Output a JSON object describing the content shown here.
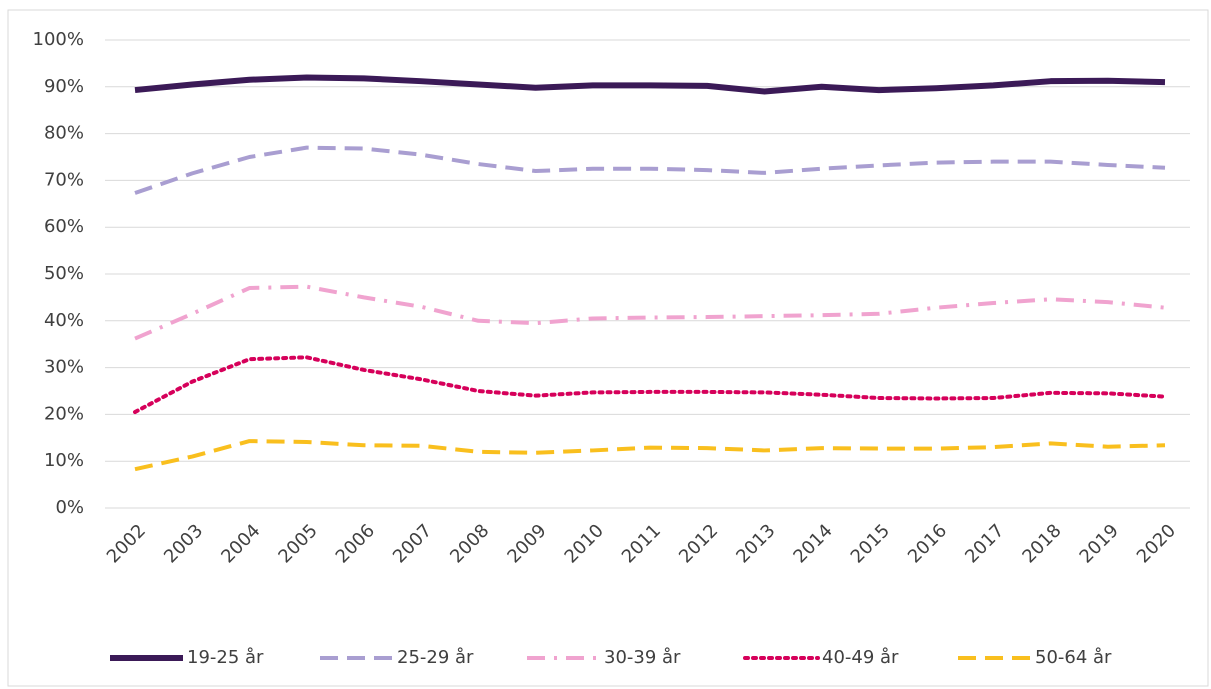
{
  "chart_data": {
    "type": "line",
    "x": [
      "2002",
      "2003",
      "2004",
      "2005",
      "2006",
      "2007",
      "2008",
      "2009",
      "2010",
      "2011",
      "2012",
      "2013",
      "2014",
      "2015",
      "2016",
      "2017",
      "2018",
      "2019",
      "2020"
    ],
    "series": [
      {
        "name": "19-25 år",
        "color": "#3b1a57",
        "dash": "solid",
        "values": [
          89.3,
          90.5,
          91.5,
          92,
          91.8,
          91.2,
          90.5,
          89.8,
          90.3,
          90.3,
          90.2,
          89,
          90,
          89.3,
          89.7,
          90.3,
          91.2,
          91.3,
          91
        ]
      },
      {
        "name": "25-29 år",
        "color": "#a99ed1",
        "dash": "dashed",
        "values": [
          67.3,
          71.5,
          75,
          77,
          76.8,
          75.5,
          73.5,
          72,
          72.5,
          72.5,
          72.2,
          71.6,
          72.5,
          73.2,
          73.8,
          74,
          74,
          73.3,
          72.7
        ]
      },
      {
        "name": "30-39 år",
        "color": "#f0a3cf",
        "dash": "dashdot",
        "values": [
          36.2,
          41.5,
          47,
          47.3,
          45,
          43,
          40,
          39.5,
          40.5,
          40.7,
          40.8,
          41,
          41.2,
          41.5,
          42.8,
          43.8,
          44.6,
          44,
          42.8
        ]
      },
      {
        "name": "40-49 år",
        "color": "#d6005a",
        "dash": "dotted",
        "values": [
          20.5,
          27,
          31.8,
          32.2,
          29.5,
          27.5,
          25,
          24,
          24.7,
          24.8,
          24.8,
          24.7,
          24.2,
          23.5,
          23.4,
          23.5,
          24.6,
          24.5,
          23.8
        ]
      },
      {
        "name": "50-64 år",
        "color": "#f9bf1e",
        "dash": "dashed",
        "values": [
          8.3,
          11,
          14.3,
          14.1,
          13.4,
          13.3,
          12,
          11.8,
          12.3,
          12.9,
          12.8,
          12.3,
          12.8,
          12.7,
          12.7,
          13,
          13.8,
          13.1,
          13.4
        ]
      }
    ],
    "ylim": [
      0,
      100
    ],
    "yticks": [
      {
        "value": 0,
        "label": "0%"
      },
      {
        "value": 10,
        "label": "10%"
      },
      {
        "value": 20,
        "label": "20%"
      },
      {
        "value": 30,
        "label": "30%"
      },
      {
        "value": 40,
        "label": "40%"
      },
      {
        "value": 50,
        "label": "50%"
      },
      {
        "value": 60,
        "label": "60%"
      },
      {
        "value": 70,
        "label": "70%"
      },
      {
        "value": 80,
        "label": "80%"
      },
      {
        "value": 90,
        "label": "90%"
      },
      {
        "value": 100,
        "label": "100%"
      }
    ],
    "grid": true,
    "legend": "bottom"
  }
}
